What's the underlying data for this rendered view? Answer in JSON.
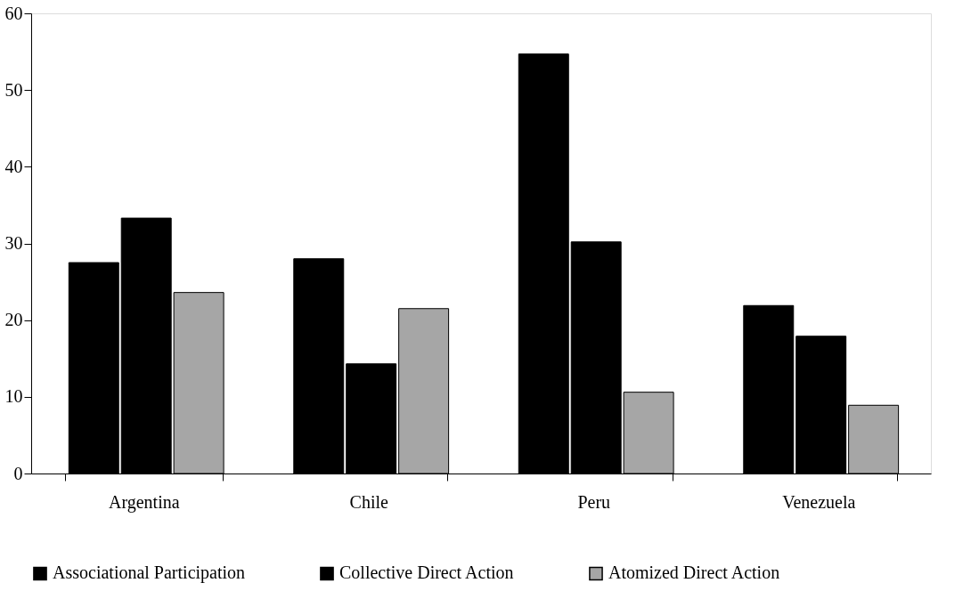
{
  "chart_data": {
    "type": "bar",
    "categories": [
      "Argentina",
      "Chile",
      "Peru",
      "Venezuela"
    ],
    "series": [
      {
        "name": "Associational Participation",
        "color": "#000000",
        "values": [
          27.5,
          28.0,
          54.7,
          21.9
        ]
      },
      {
        "name": "Collective Direct Action",
        "color": "#000000",
        "values": [
          33.3,
          14.3,
          30.2,
          17.9
        ]
      },
      {
        "name": "Atomized Direct Action",
        "color": "#a6a6a6",
        "values": [
          23.6,
          21.5,
          10.6,
          8.9
        ]
      }
    ],
    "ylim": [
      0,
      60
    ],
    "yticks": [
      0,
      10,
      20,
      30,
      40,
      50,
      60
    ],
    "grid": false,
    "legend": "bottom"
  }
}
